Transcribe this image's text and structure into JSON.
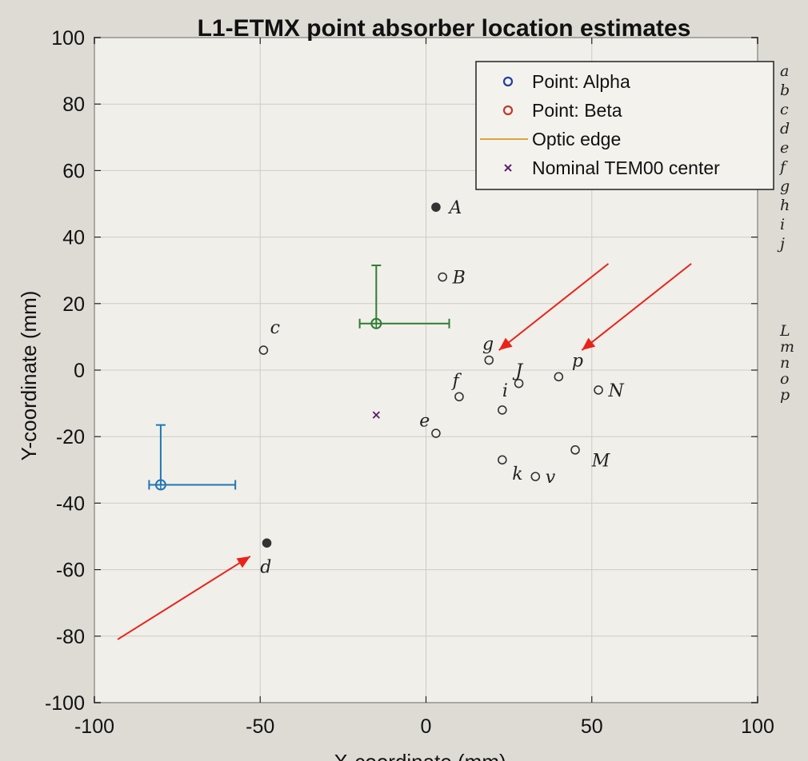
{
  "chart_data": {
    "type": "scatter",
    "title": "L1-ETMX point absorber location estimates",
    "xlabel": "X-coordinate (mm)",
    "ylabel": "Y-coordinate (mm)",
    "xlim": [
      -100,
      100
    ],
    "ylim": [
      -100,
      100
    ],
    "xticks": [
      -100,
      -50,
      0,
      50,
      100
    ],
    "yticks": [
      -100,
      -80,
      -60,
      -40,
      -20,
      0,
      20,
      40,
      60,
      80,
      100
    ],
    "xtick_labels": [
      "-100",
      "-50",
      "0",
      "50",
      "100"
    ],
    "ytick_labels": [
      "-100",
      "-80",
      "-60",
      "-40",
      "-20",
      "0",
      "20",
      "40",
      "60",
      "80",
      "100"
    ],
    "grid": true,
    "legend_position": "top-right",
    "legend": [
      {
        "label": "Point: Alpha",
        "marker": "circle",
        "color": "#1f3fa0"
      },
      {
        "label": "Point: Beta",
        "marker": "circle",
        "color": "#c0392b"
      },
      {
        "label": "Optic edge",
        "marker": "line",
        "color": "#d9a441"
      },
      {
        "label": "Nominal TEM00 center",
        "marker": "x",
        "color": "#5b1f6b"
      }
    ],
    "series": [
      {
        "name": "Point: Alpha",
        "color": "#1f77b4",
        "x": [
          -80
        ],
        "y": [
          -34.5
        ],
        "xerr_low": [
          3.5
        ],
        "xerr_high": [
          22.5
        ],
        "yerr_low": [
          0
        ],
        "yerr_high": [
          18
        ]
      },
      {
        "name": "Point: Beta",
        "color": "#2e7d32",
        "x": [
          -15
        ],
        "y": [
          14
        ],
        "xerr_low": [
          5
        ],
        "xerr_high": [
          22
        ],
        "yerr_low": [
          0
        ],
        "yerr_high": [
          17.5
        ]
      },
      {
        "name": "Nominal TEM00 center",
        "color": "#5b1f6b",
        "x": [
          -15
        ],
        "y": [
          -13.5
        ]
      }
    ],
    "annotations": [
      {
        "text": "A",
        "x": 7,
        "y": 49,
        "mark_x": 3,
        "mark_y": 49,
        "filled": true
      },
      {
        "text": "B",
        "x": 8,
        "y": 28,
        "mark_x": 5,
        "mark_y": 28
      },
      {
        "text": "c",
        "x": -47,
        "y": 13,
        "mark_x": -49,
        "mark_y": 6
      },
      {
        "text": "g",
        "x": 17,
        "y": 8,
        "mark_x": 19,
        "mark_y": 3
      },
      {
        "text": "J",
        "x": 27,
        "y": 0,
        "mark_x": 28,
        "mark_y": -4
      },
      {
        "text": "p",
        "x": 44,
        "y": 3,
        "mark_x": 40,
        "mark_y": -2
      },
      {
        "text": "N",
        "x": 55,
        "y": -6,
        "mark_x": 52,
        "mark_y": -6
      },
      {
        "text": "f",
        "x": 8,
        "y": -3,
        "mark_x": 10,
        "mark_y": -8
      },
      {
        "text": "i",
        "x": 23,
        "y": -6,
        "mark_x": 23,
        "mark_y": -12
      },
      {
        "text": "e",
        "x": -2,
        "y": -15,
        "mark_x": 3,
        "mark_y": -19
      },
      {
        "text": "M",
        "x": 50,
        "y": -27,
        "mark_x": 45,
        "mark_y": -24
      },
      {
        "text": "k",
        "x": 26,
        "y": -31,
        "mark_x": 23,
        "mark_y": -27
      },
      {
        "text": "v",
        "x": 36,
        "y": -32,
        "mark_x": 33,
        "mark_y": -32
      },
      {
        "text": "d",
        "x": -50,
        "y": -59,
        "mark_x": -48,
        "mark_y": -52,
        "filled": true
      }
    ],
    "side_letters": [
      "a",
      "b",
      "c",
      "d",
      "e",
      "f",
      "g",
      "h",
      "i",
      "j",
      "L",
      "m",
      "n",
      "o",
      "p"
    ],
    "arrows": [
      {
        "from": [
          55,
          32
        ],
        "to": [
          22,
          6
        ]
      },
      {
        "from": [
          80,
          32
        ],
        "to": [
          47,
          6
        ]
      },
      {
        "from": [
          -93,
          -81
        ],
        "to": [
          -53,
          -56
        ]
      }
    ]
  }
}
